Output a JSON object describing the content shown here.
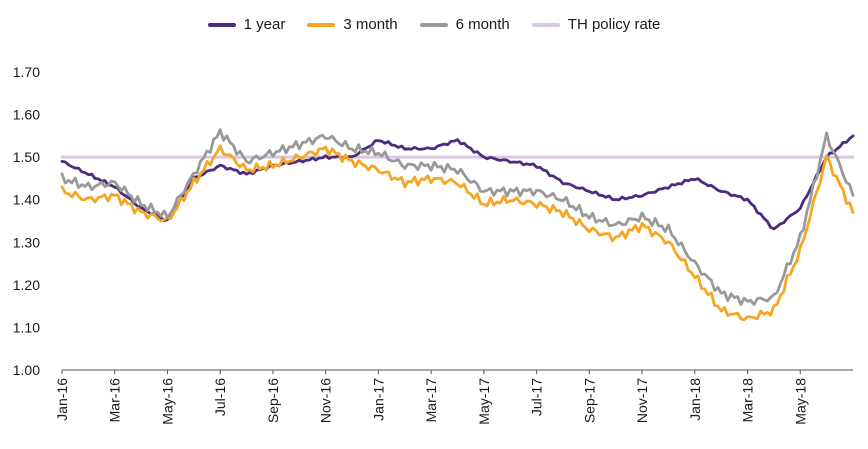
{
  "chart_data": {
    "type": "line",
    "title": "",
    "xlabel": "",
    "ylabel": "",
    "ylim": [
      1.0,
      1.7
    ],
    "yticks": [
      "1.00",
      "1.10",
      "1.20",
      "1.30",
      "1.40",
      "1.50",
      "1.60",
      "1.70"
    ],
    "x_labels": [
      "Jan-16",
      "Mar-16",
      "May-16",
      "Jul-16",
      "Sep-16",
      "Nov-16",
      "Jan-17",
      "Mar-17",
      "May-17",
      "Jul-17",
      "Sep-17",
      "Nov-17",
      "Jan-18",
      "Mar-18",
      "May-18"
    ],
    "months": [
      "Jan-16",
      "Feb-16",
      "Mar-16",
      "Apr-16",
      "May-16",
      "Jun-16",
      "Jul-16",
      "Aug-16",
      "Sep-16",
      "Oct-16",
      "Nov-16",
      "Dec-16",
      "Jan-17",
      "Feb-17",
      "Mar-17",
      "Apr-17",
      "May-17",
      "Jun-17",
      "Jul-17",
      "Aug-17",
      "Sep-17",
      "Oct-17",
      "Nov-17",
      "Dec-17",
      "Jan-18",
      "Feb-18",
      "Mar-18",
      "Apr-18",
      "May-18",
      "Jun-18",
      "Jul-18"
    ],
    "legend": {
      "placement": "top"
    },
    "series": [
      {
        "name": "1 year",
        "color": "#4b2c7e",
        "values": [
          1.49,
          1.46,
          1.43,
          1.38,
          1.35,
          1.45,
          1.48,
          1.46,
          1.48,
          1.49,
          1.5,
          1.5,
          1.54,
          1.52,
          1.52,
          1.54,
          1.5,
          1.49,
          1.48,
          1.44,
          1.42,
          1.4,
          1.41,
          1.43,
          1.45,
          1.42,
          1.4,
          1.33,
          1.38,
          1.5,
          1.55
        ]
      },
      {
        "name": "3 month",
        "color": "#f5a623",
        "values": [
          1.42,
          1.4,
          1.41,
          1.37,
          1.35,
          1.44,
          1.52,
          1.47,
          1.48,
          1.5,
          1.52,
          1.49,
          1.47,
          1.44,
          1.45,
          1.44,
          1.39,
          1.4,
          1.39,
          1.37,
          1.33,
          1.31,
          1.34,
          1.3,
          1.22,
          1.14,
          1.12,
          1.14,
          1.28,
          1.5,
          1.37
        ]
      },
      {
        "name": "6 month",
        "color": "#999999",
        "values": [
          1.45,
          1.43,
          1.44,
          1.39,
          1.36,
          1.46,
          1.56,
          1.49,
          1.51,
          1.53,
          1.55,
          1.52,
          1.51,
          1.48,
          1.48,
          1.47,
          1.42,
          1.42,
          1.42,
          1.4,
          1.36,
          1.34,
          1.36,
          1.33,
          1.25,
          1.18,
          1.16,
          1.17,
          1.31,
          1.55,
          1.41
        ]
      },
      {
        "name": "TH policy rate",
        "color": "#d9c8e4",
        "values": [
          1.5,
          1.5,
          1.5,
          1.5,
          1.5,
          1.5,
          1.5,
          1.5,
          1.5,
          1.5,
          1.5,
          1.5,
          1.5,
          1.5,
          1.5,
          1.5,
          1.5,
          1.5,
          1.5,
          1.5,
          1.5,
          1.5,
          1.5,
          1.5,
          1.5,
          1.5,
          1.5,
          1.5,
          1.5,
          1.5,
          1.5
        ]
      }
    ]
  }
}
